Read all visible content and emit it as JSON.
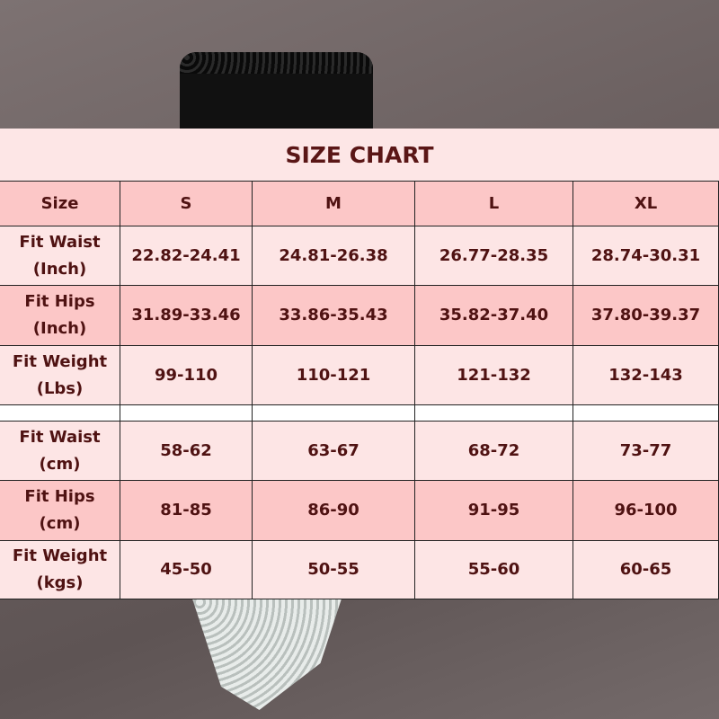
{
  "title": "SIZE CHART",
  "header": [
    "Size",
    "S",
    "M",
    "L",
    "XL"
  ],
  "inch_rows": [
    {
      "label": "Fit Waist\n(Inch)",
      "values": [
        "22.82-24.41",
        "24.81-26.38",
        "26.77-28.35",
        "28.74-30.31"
      ]
    },
    {
      "label": "Fit Hips\n(Inch)",
      "values": [
        "31.89-33.46",
        "33.86-35.43",
        "35.82-37.40",
        "37.80-39.37"
      ]
    },
    {
      "label": "Fit Weight\n(Lbs)",
      "values": [
        "99-110",
        "110-121",
        "121-132",
        "132-143"
      ]
    }
  ],
  "cm_rows": [
    {
      "label": "Fit Waist\n(cm)",
      "values": [
        "58-62",
        "63-67",
        "68-72",
        "73-77"
      ]
    },
    {
      "label": "Fit Hips\n(cm)",
      "values": [
        "81-85",
        "86-90",
        "91-95",
        "96-100"
      ]
    },
    {
      "label": "Fit Weight\n(kgs)",
      "values": [
        "45-50",
        "50-55",
        "55-60",
        "60-65"
      ]
    }
  ],
  "colors": {
    "dark_row": "#fcc7c7",
    "light_row": "#fde5e5",
    "text": "#4f1212"
  }
}
